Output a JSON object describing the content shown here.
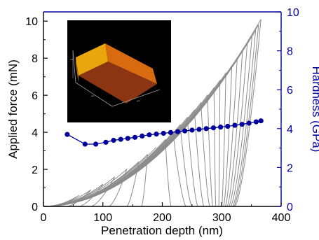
{
  "chart_data": {
    "type": "line",
    "xlabel": "Penetration depth (nm)",
    "ylabel_left": "Applied force (mN)",
    "ylabel_right": "Hardness (GPa)",
    "x_ticks": [
      "0",
      "100",
      "200",
      "300",
      "400"
    ],
    "y_left_ticks": [
      "0",
      "2",
      "4",
      "6",
      "8",
      "10"
    ],
    "y_right_ticks": [
      "0",
      "2",
      "4",
      "6",
      "8",
      "10"
    ],
    "xlim": [
      0,
      400
    ],
    "ylim_left": [
      0,
      10.5
    ],
    "ylim_right": [
      0,
      10
    ],
    "series": [
      {
        "axis": "right",
        "color": "#00009c",
        "marker": "circle",
        "x": [
          40,
          70,
          88,
          105,
          118,
          130,
          142,
          154,
          166,
          178,
          190,
          202,
          214,
          226,
          238,
          250,
          262,
          274,
          286,
          298,
          310,
          322,
          334,
          346,
          358,
          366
        ],
        "y": [
          3.7,
          3.2,
          3.2,
          3.3,
          3.4,
          3.45,
          3.5,
          3.55,
          3.62,
          3.68,
          3.72,
          3.76,
          3.8,
          3.84,
          3.88,
          3.92,
          3.96,
          4.0,
          4.04,
          4.08,
          4.12,
          4.17,
          4.22,
          4.28,
          4.35,
          4.4
        ]
      }
    ],
    "load_curves": {
      "color": "#8c8c8c",
      "count": 26,
      "max_force": [
        0.6,
        0.9,
        1.2,
        1.6,
        2.0,
        2.4,
        2.8,
        3.2,
        3.6,
        4.0,
        4.4,
        4.8,
        5.2,
        5.6,
        6.0,
        6.4,
        6.8,
        7.2,
        7.6,
        8.0,
        8.4,
        8.8,
        9.2,
        9.5,
        9.8,
        10.1
      ],
      "max_depth": [
        60,
        80,
        100,
        120,
        140,
        160,
        175,
        190,
        205,
        218,
        230,
        242,
        254,
        265,
        276,
        287,
        297,
        307,
        317,
        326,
        335,
        343,
        351,
        357,
        362,
        366
      ],
      "residual_depth": [
        20,
        40,
        60,
        80,
        110,
        140,
        165,
        190,
        215,
        240,
        250,
        260,
        270,
        280,
        285,
        290,
        295,
        300,
        303,
        306,
        309,
        312,
        315,
        318,
        320,
        322
      ]
    },
    "grid": false,
    "legend": "none"
  },
  "colors": {
    "right_axis": "#00009c",
    "curves": "#8c8c8c",
    "inset_bg": "#000000"
  }
}
